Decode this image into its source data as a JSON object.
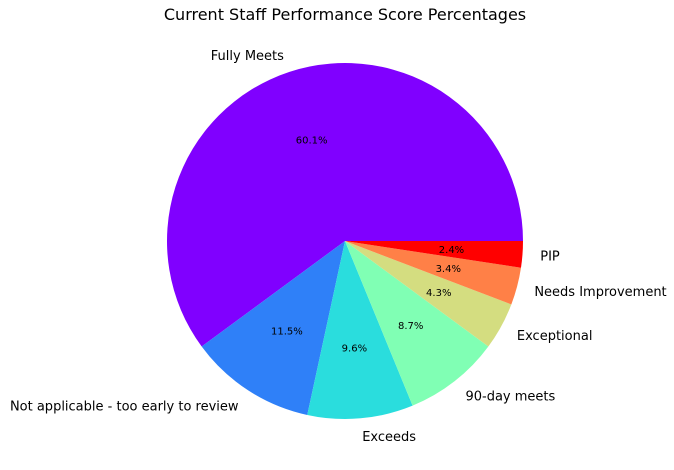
{
  "chart_data": {
    "type": "pie",
    "title": "Current Staff Performance Score Percentages",
    "start_angle_deg": 0,
    "direction": "counterclockwise",
    "slices": [
      {
        "label": "Fully Meets",
        "value": 60.1,
        "pct_text": "60.1%",
        "color": "#8000ff"
      },
      {
        "label": "Not applicable - too early to review",
        "value": 11.5,
        "pct_text": "11.5%",
        "color": "#2f80f8"
      },
      {
        "label": "Exceeds",
        "value": 9.6,
        "pct_text": "9.6%",
        "color": "#2adddd"
      },
      {
        "label": "90-day meets",
        "value": 8.7,
        "pct_text": "8.7%",
        "color": "#80ffb4"
      },
      {
        "label": "Exceptional",
        "value": 4.3,
        "pct_text": "4.3%",
        "color": "#d4dd80"
      },
      {
        "label": "Needs Improvement",
        "value": 3.4,
        "pct_text": "3.4%",
        "color": "#ff8047"
      },
      {
        "label": "PIP",
        "value": 2.4,
        "pct_text": "2.4%",
        "color": "#ff0000"
      }
    ]
  }
}
